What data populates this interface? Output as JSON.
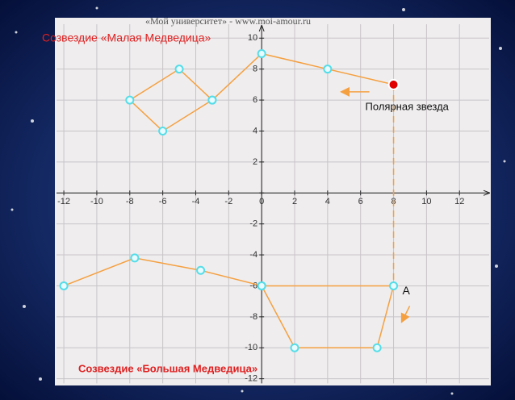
{
  "chart_data": {
    "type": "line",
    "header": "«Мой университет» - www.moi-amour.ru",
    "xlim": [
      -12.2,
      13.8
    ],
    "ylim": [
      -12.3,
      10.9
    ],
    "xticks": [
      -12,
      -10,
      -8,
      -6,
      -4,
      -2,
      0,
      2,
      4,
      6,
      8,
      10,
      12
    ],
    "yticks": [
      -12,
      -10,
      -8,
      -6,
      -4,
      -2,
      0,
      2,
      4,
      6,
      8,
      10
    ],
    "grid": true,
    "series": [
      {
        "name": "Созвездие «Малая Медведица»",
        "color": "#f5a040",
        "x": [
          -3,
          -6,
          -8,
          -5,
          -3,
          0,
          4,
          8
        ],
        "y": [
          6,
          4,
          6,
          8,
          6,
          9,
          8,
          7
        ]
      },
      {
        "name": "Созвездие «Большая Медведица»",
        "color": "#f5a040",
        "x": [
          -12,
          -7.7,
          -3.7,
          0,
          2,
          7,
          8,
          0
        ],
        "y": [
          -6,
          -4.2,
          -5,
          -6,
          -10,
          -10,
          -6,
          -6
        ]
      },
      {
        "name": "Полярная звезда",
        "color": "#e00000",
        "x": [
          8
        ],
        "y": [
          7
        ]
      }
    ],
    "guides": [
      {
        "x": [
          8,
          8
        ],
        "y": [
          7,
          -6
        ],
        "color": "#f5a040"
      }
    ],
    "annotations": [
      {
        "text": "A",
        "x": 8,
        "y": -6
      }
    ]
  }
}
